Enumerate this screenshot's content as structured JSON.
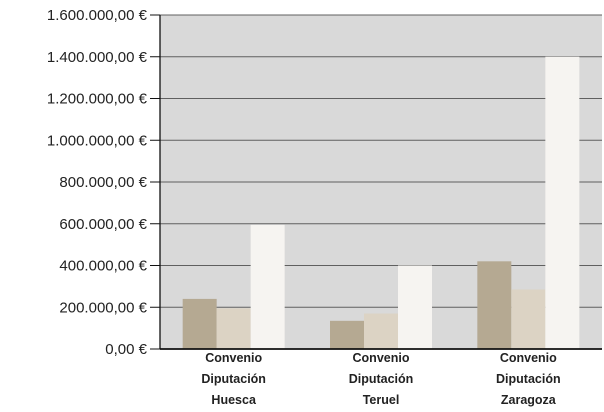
{
  "chart_data": {
    "type": "bar",
    "title": "",
    "xlabel": "",
    "ylabel": "",
    "ylim": [
      0,
      1600000
    ],
    "yticks": [
      0,
      200000,
      400000,
      600000,
      800000,
      1000000,
      1200000,
      1400000,
      1600000
    ],
    "ytick_labels": [
      "0,00 €",
      "200.000,00 €",
      "400.000,00 €",
      "600.000,00 €",
      "800.000,00 €",
      "1.000.000,00 €",
      "1.200.000,00 €",
      "1.400.000,00 €",
      "1.600.000,00 €"
    ],
    "grid": true,
    "legend": "none",
    "categories": [
      [
        "Convenio",
        "Diputación",
        "Huesca"
      ],
      [
        "Convenio",
        "Diputación",
        "Teruel"
      ],
      [
        "Convenio",
        "Diputación",
        "Zaragoza"
      ]
    ],
    "series": [
      {
        "color": "#b5a992",
        "values": [
          240000,
          135000,
          420000
        ]
      },
      {
        "color": "#dcd3c4",
        "values": [
          195000,
          170000,
          285000
        ]
      },
      {
        "color": "#f6f4f1",
        "values": [
          595000,
          400000,
          1400000
        ]
      }
    ],
    "colors": {
      "plot_background": "#d9d9d9",
      "gridline": "#606060",
      "axis": "#111111"
    }
  }
}
